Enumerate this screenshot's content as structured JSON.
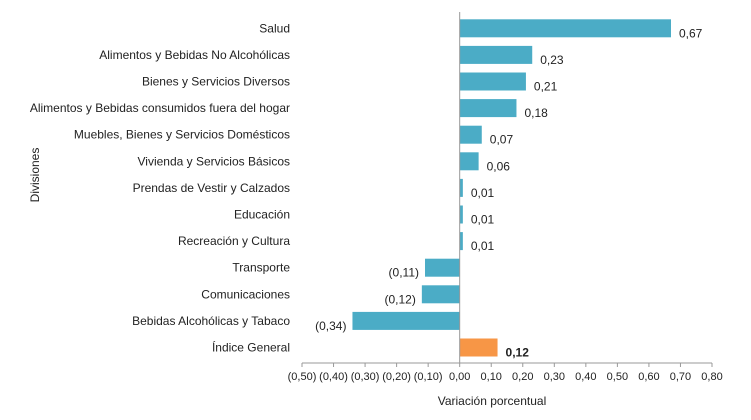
{
  "chart_data": {
    "type": "bar",
    "orientation": "horizontal",
    "xlabel": "Variación porcentual",
    "ylabel": "Divisiones",
    "xlim": [
      -0.5,
      0.8
    ],
    "x_tick_step": 0.1,
    "x_tick_labels": [
      "(0,50)",
      "(0,40)",
      "(0,30)",
      "(0,20)",
      "(0,10)",
      "0,00",
      "0,10",
      "0,20",
      "0,30",
      "0,40",
      "0,50",
      "0,60",
      "0,70",
      "0,80"
    ],
    "grid": false,
    "legend": "none",
    "colors": {
      "bar": "#4BACC6",
      "highlight": "#F79646",
      "axis": "#999999"
    },
    "categories": [
      "Salud",
      "Alimentos y Bebidas No Alcohólicas",
      "Bienes y Servicios Diversos",
      "Alimentos y Bebidas consumidos fuera del hogar",
      "Muebles, Bienes y Servicios Domésticos",
      "Vivienda y Servicios Básicos",
      "Prendas de Vestir y Calzados",
      "Educación",
      "Recreación y Cultura",
      "Transporte",
      "Comunicaciones",
      "Bebidas Alcohólicas y Tabaco",
      "Índice General"
    ],
    "values": [
      0.67,
      0.23,
      0.21,
      0.18,
      0.07,
      0.06,
      0.01,
      0.01,
      0.01,
      -0.11,
      -0.12,
      -0.34,
      0.12
    ],
    "value_labels": [
      "0,67",
      "0,23",
      "0,21",
      "0,18",
      "0,07",
      "0,06",
      "0,01",
      "0,01",
      "0,01",
      "(0,11)",
      "(0,12)",
      "(0,34)",
      "0,12"
    ],
    "highlight_category": "Índice General"
  }
}
